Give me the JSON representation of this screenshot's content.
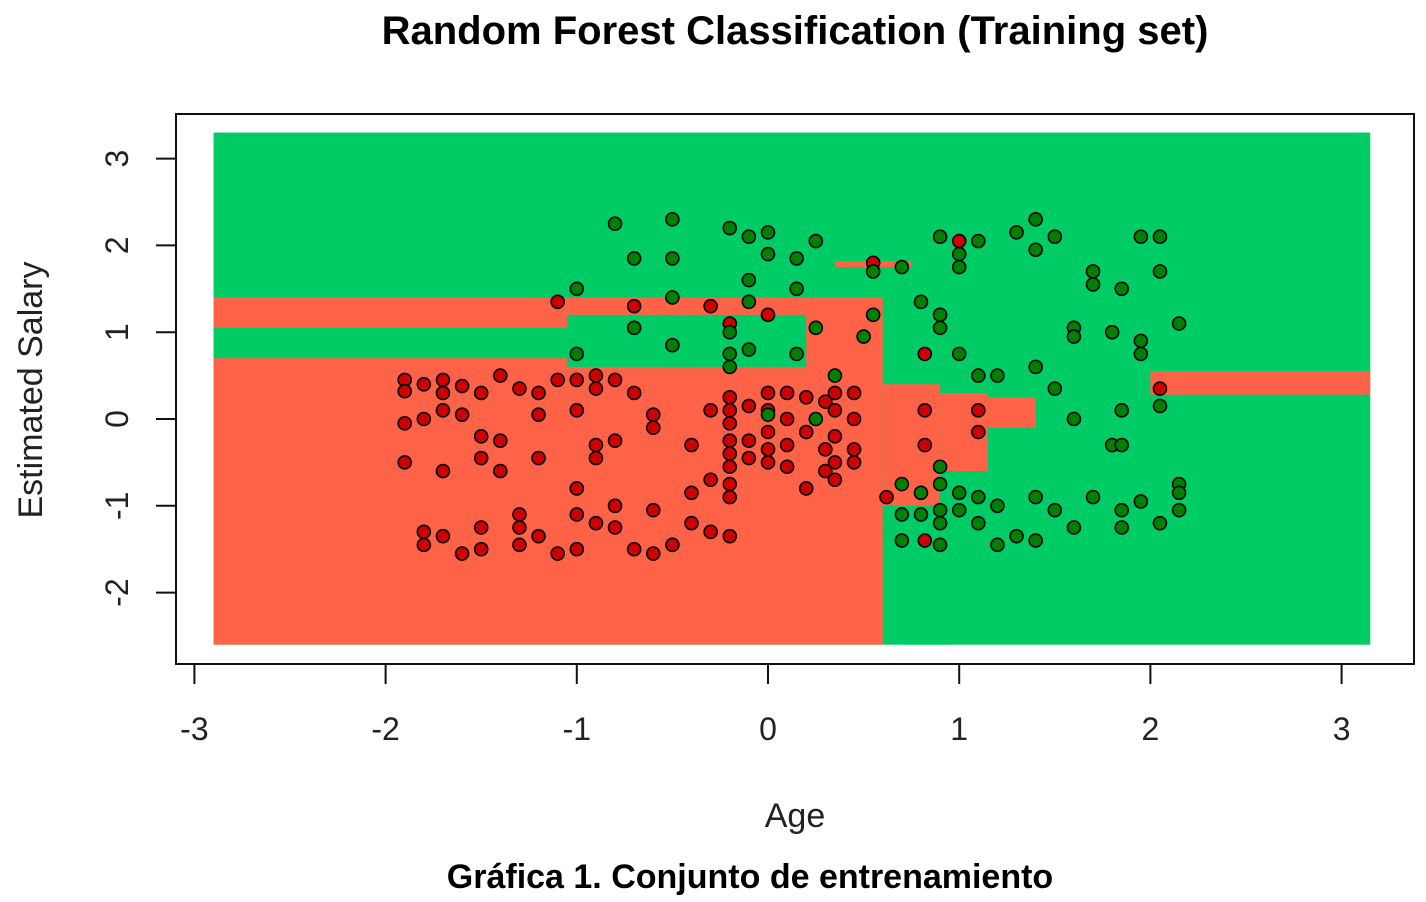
{
  "chart_data": {
    "type": "scatter",
    "title": "Random Forest Classification (Training set)",
    "xlabel": "Age",
    "ylabel": "Estimated Salary",
    "caption": "Gráfica 1. Conjunto de entrenamiento",
    "xlim": [
      -3,
      3
    ],
    "ylim": [
      -2,
      3
    ],
    "x_ticks": [
      "-3",
      "-2",
      "-1",
      "0",
      "1",
      "2",
      "3"
    ],
    "y_ticks": [
      "-2",
      "-1",
      "0",
      "1",
      "2",
      "3"
    ],
    "grid": false,
    "colors": {
      "region_class0": "#ff6347",
      "region_class1": "#00cc66",
      "point_class0": "#cc0000",
      "point_class1": "#008000",
      "point_outline": "#000000"
    },
    "regions_class0": [
      [
        -2.9,
        0.6,
        -2.6,
        1.4
      ],
      [
        0.6,
        0.9,
        -1.0,
        0.4
      ],
      [
        0.9,
        1.15,
        -0.6,
        0.3
      ],
      [
        1.15,
        1.4,
        -0.1,
        0.25
      ],
      [
        -1.05,
        0.0,
        1.2,
        1.35
      ],
      [
        0.35,
        0.75,
        1.75,
        1.82
      ],
      [
        2.0,
        3.15,
        0.28,
        0.55
      ]
    ],
    "regions_class1": [
      [
        0.7,
        0.95,
        -2.6,
        -1.0
      ],
      [
        0.9,
        1.15,
        -0.9,
        -0.6
      ],
      [
        -1.05,
        0.2,
        0.6,
        1.2
      ],
      [
        -2.9,
        -1.0,
        0.7,
        1.05
      ]
    ],
    "series": [
      {
        "name": "0",
        "points": [
          [
            -1.9,
            0.45
          ],
          [
            -1.9,
            0.32
          ],
          [
            -1.8,
            0.4
          ],
          [
            -1.7,
            0.45
          ],
          [
            -1.7,
            0.3
          ],
          [
            -1.6,
            0.38
          ],
          [
            -1.5,
            0.3
          ],
          [
            -1.4,
            0.5
          ],
          [
            -1.3,
            0.35
          ],
          [
            -1.2,
            0.3
          ],
          [
            -1.1,
            0.45
          ],
          [
            -1.0,
            0.45
          ],
          [
            -0.9,
            0.5
          ],
          [
            -0.9,
            0.35
          ],
          [
            -0.8,
            0.45
          ],
          [
            -0.7,
            0.3
          ],
          [
            -1.9,
            -0.05
          ],
          [
            -1.8,
            0.0
          ],
          [
            -1.7,
            0.1
          ],
          [
            -1.6,
            0.05
          ],
          [
            -1.5,
            -0.2
          ],
          [
            -1.4,
            -0.25
          ],
          [
            -1.2,
            0.05
          ],
          [
            -1.0,
            0.1
          ],
          [
            -0.9,
            -0.3
          ],
          [
            -0.8,
            -0.25
          ],
          [
            -0.6,
            0.05
          ],
          [
            -0.6,
            -0.1
          ],
          [
            -0.4,
            -0.3
          ],
          [
            -0.3,
            0.1
          ],
          [
            -1.9,
            -0.5
          ],
          [
            -1.7,
            -0.6
          ],
          [
            -1.5,
            -0.45
          ],
          [
            -1.4,
            -0.6
          ],
          [
            -1.2,
            -0.45
          ],
          [
            -1.0,
            -0.8
          ],
          [
            -0.9,
            -0.45
          ],
          [
            -0.8,
            -1.0
          ],
          [
            -0.6,
            -1.05
          ],
          [
            -0.4,
            -0.85
          ],
          [
            -0.3,
            -0.7
          ],
          [
            -1.8,
            -1.3
          ],
          [
            -1.8,
            -1.45
          ],
          [
            -1.7,
            -1.35
          ],
          [
            -1.6,
            -1.55
          ],
          [
            -1.5,
            -1.25
          ],
          [
            -1.5,
            -1.5
          ],
          [
            -1.3,
            -1.1
          ],
          [
            -1.3,
            -1.25
          ],
          [
            -1.3,
            -1.45
          ],
          [
            -1.2,
            -1.35
          ],
          [
            -1.1,
            -1.55
          ],
          [
            -1.0,
            -1.1
          ],
          [
            -1.0,
            -1.5
          ],
          [
            -0.9,
            -1.2
          ],
          [
            -0.8,
            -1.25
          ],
          [
            -0.7,
            -1.5
          ],
          [
            -0.6,
            -1.55
          ],
          [
            -0.5,
            -1.45
          ],
          [
            -0.4,
            -1.2
          ],
          [
            -0.3,
            -1.3
          ],
          [
            -0.2,
            -1.35
          ],
          [
            -0.2,
            0.25
          ],
          [
            -0.2,
            0.1
          ],
          [
            -0.2,
            -0.05
          ],
          [
            -0.2,
            -0.25
          ],
          [
            -0.2,
            -0.4
          ],
          [
            -0.2,
            -0.55
          ],
          [
            -0.2,
            -0.75
          ],
          [
            -0.2,
            -0.9
          ],
          [
            -0.1,
            0.15
          ],
          [
            -0.1,
            -0.25
          ],
          [
            -0.1,
            -0.45
          ],
          [
            0.0,
            0.3
          ],
          [
            0.0,
            0.1
          ],
          [
            0.0,
            -0.15
          ],
          [
            0.0,
            -0.35
          ],
          [
            0.0,
            -0.5
          ],
          [
            0.1,
            0.3
          ],
          [
            0.1,
            0.0
          ],
          [
            0.1,
            -0.3
          ],
          [
            0.1,
            -0.55
          ],
          [
            0.2,
            0.25
          ],
          [
            0.2,
            -0.15
          ],
          [
            0.2,
            -0.8
          ],
          [
            0.3,
            0.2
          ],
          [
            0.3,
            -0.35
          ],
          [
            0.3,
            -0.6
          ],
          [
            0.35,
            0.3
          ],
          [
            0.35,
            0.1
          ],
          [
            0.35,
            -0.2
          ],
          [
            0.35,
            -0.5
          ],
          [
            0.35,
            -0.7
          ],
          [
            0.45,
            0.3
          ],
          [
            0.45,
            0.0
          ],
          [
            0.45,
            -0.35
          ],
          [
            0.45,
            -0.5
          ],
          [
            -1.1,
            1.35
          ],
          [
            -0.7,
            1.3
          ],
          [
            -0.3,
            1.3
          ],
          [
            -0.2,
            1.1
          ],
          [
            0.0,
            1.2
          ],
          [
            0.55,
            1.8
          ],
          [
            0.82,
            0.75
          ],
          [
            0.82,
            0.1
          ],
          [
            0.82,
            -0.3
          ],
          [
            1.0,
            2.05
          ],
          [
            1.1,
            0.1
          ],
          [
            1.1,
            -0.15
          ],
          [
            2.05,
            0.35
          ],
          [
            0.62,
            -0.9
          ],
          [
            0.82,
            -1.4
          ]
        ]
      },
      {
        "name": "1",
        "points": [
          [
            -0.8,
            2.25
          ],
          [
            -0.5,
            2.3
          ],
          [
            -0.2,
            2.2
          ],
          [
            -0.1,
            2.1
          ],
          [
            0.0,
            2.15
          ],
          [
            0.25,
            2.05
          ],
          [
            -0.7,
            1.85
          ],
          [
            -0.5,
            1.85
          ],
          [
            0.0,
            1.9
          ],
          [
            0.15,
            1.85
          ],
          [
            -0.1,
            1.6
          ],
          [
            -1.0,
            1.5
          ],
          [
            -0.5,
            1.4
          ],
          [
            -0.1,
            1.35
          ],
          [
            0.15,
            1.5
          ],
          [
            -0.7,
            1.05
          ],
          [
            -0.2,
            1.0
          ],
          [
            0.25,
            1.05
          ],
          [
            -0.5,
            0.85
          ],
          [
            -0.2,
            0.75
          ],
          [
            -0.1,
            0.8
          ],
          [
            0.15,
            0.75
          ],
          [
            -1.0,
            0.75
          ],
          [
            -0.2,
            0.6
          ],
          [
            0.35,
            0.5
          ],
          [
            0.5,
            0.95
          ],
          [
            0.55,
            1.2
          ],
          [
            0.55,
            1.7
          ],
          [
            0.7,
            1.75
          ],
          [
            0.8,
            1.35
          ],
          [
            0.9,
            2.1
          ],
          [
            1.0,
            1.9
          ],
          [
            1.0,
            1.75
          ],
          [
            1.1,
            2.05
          ],
          [
            0.9,
            1.2
          ],
          [
            0.9,
            1.05
          ],
          [
            1.0,
            0.75
          ],
          [
            1.1,
            0.5
          ],
          [
            1.2,
            0.5
          ],
          [
            1.3,
            2.15
          ],
          [
            1.4,
            2.3
          ],
          [
            1.4,
            1.95
          ],
          [
            1.5,
            2.1
          ],
          [
            1.7,
            1.7
          ],
          [
            1.7,
            1.55
          ],
          [
            1.85,
            1.5
          ],
          [
            1.6,
            1.05
          ],
          [
            1.6,
            0.95
          ],
          [
            1.8,
            1.0
          ],
          [
            1.95,
            2.1
          ],
          [
            2.05,
            2.1
          ],
          [
            2.05,
            1.7
          ],
          [
            2.15,
            1.1
          ],
          [
            1.95,
            0.9
          ],
          [
            1.95,
            0.75
          ],
          [
            1.4,
            0.6
          ],
          [
            1.5,
            0.35
          ],
          [
            1.6,
            0.0
          ],
          [
            1.8,
            -0.3
          ],
          [
            1.85,
            -0.3
          ],
          [
            1.85,
            0.1
          ],
          [
            2.05,
            0.15
          ],
          [
            0.25,
            0.0
          ],
          [
            0.0,
            0.05
          ],
          [
            0.9,
            -0.55
          ],
          [
            0.9,
            -0.75
          ],
          [
            0.7,
            -0.75
          ],
          [
            0.8,
            -0.85
          ],
          [
            0.7,
            -1.1
          ],
          [
            0.8,
            -1.1
          ],
          [
            0.7,
            -1.4
          ],
          [
            0.9,
            -1.05
          ],
          [
            0.9,
            -1.2
          ],
          [
            0.9,
            -1.45
          ],
          [
            1.0,
            -0.85
          ],
          [
            1.0,
            -1.05
          ],
          [
            1.1,
            -0.9
          ],
          [
            1.1,
            -1.2
          ],
          [
            1.2,
            -1.0
          ],
          [
            1.2,
            -1.45
          ],
          [
            1.3,
            -1.35
          ],
          [
            1.4,
            -0.9
          ],
          [
            1.4,
            -1.4
          ],
          [
            1.5,
            -1.05
          ],
          [
            1.6,
            -1.25
          ],
          [
            1.7,
            -0.9
          ],
          [
            1.85,
            -1.05
          ],
          [
            1.85,
            -1.25
          ],
          [
            1.95,
            -0.95
          ],
          [
            2.05,
            -1.2
          ],
          [
            2.15,
            -0.75
          ],
          [
            2.15,
            -0.85
          ],
          [
            2.15,
            -1.05
          ]
        ]
      }
    ]
  }
}
